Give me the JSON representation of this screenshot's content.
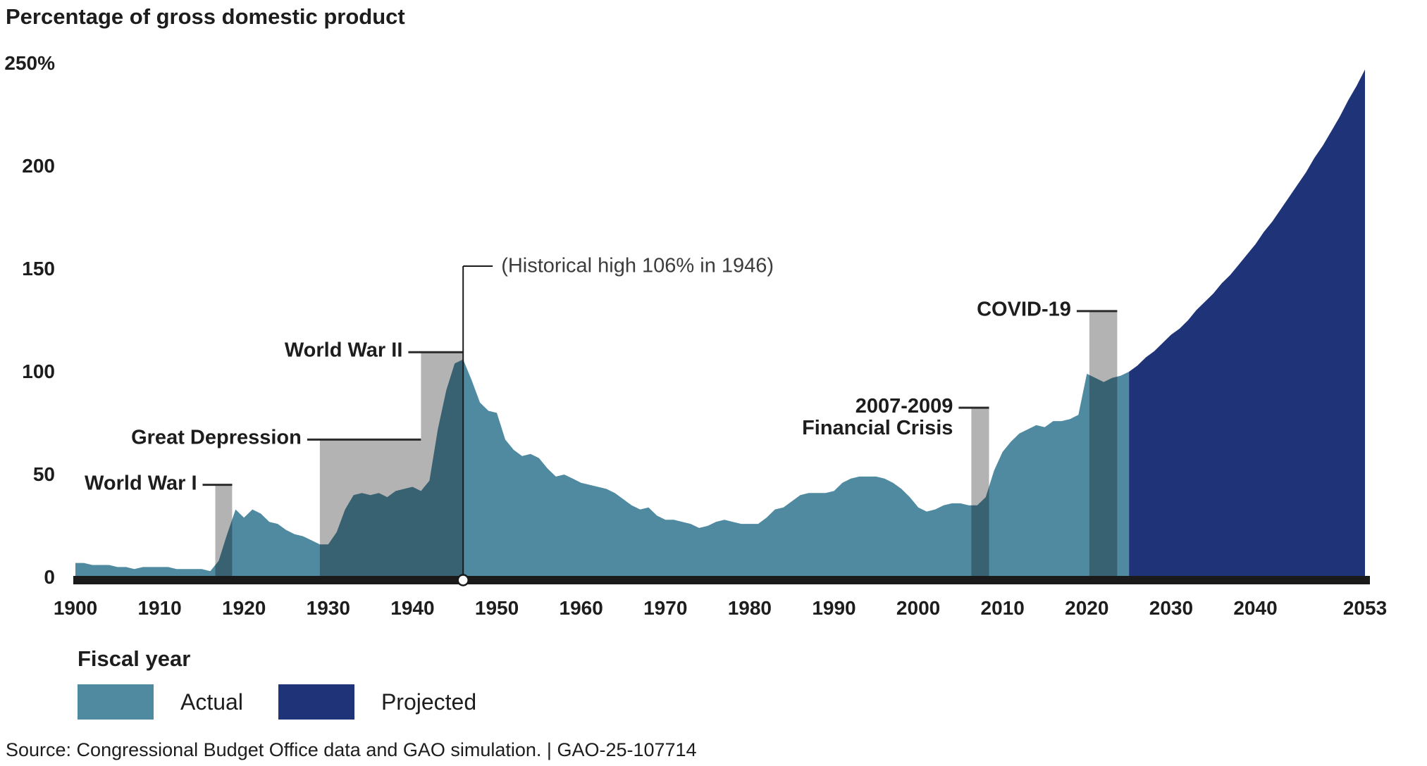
{
  "title": "Percentage of gross domestic product",
  "y_axis": {
    "ticks": [
      {
        "label": "250%",
        "value": 250
      },
      {
        "label": "200",
        "value": 200
      },
      {
        "label": "150",
        "value": 150
      },
      {
        "label": "100",
        "value": 100
      },
      {
        "label": "50",
        "value": 50
      },
      {
        "label": "0",
        "value": 0
      }
    ]
  },
  "x_axis": {
    "label": "Fiscal year",
    "ticks": [
      "1900",
      "1910",
      "1920",
      "1930",
      "1940",
      "1950",
      "1960",
      "1970",
      "1980",
      "1990",
      "2000",
      "2010",
      "2020",
      "2030",
      "2040",
      "2053"
    ]
  },
  "legend": [
    {
      "label": "Actual",
      "color": "#4F8AA1"
    },
    {
      "label": "Projected",
      "color": "#1F3378"
    }
  ],
  "source": "Source: Congressional Budget Office data and GAO simulation.  |  GAO-25-107714",
  "note": {
    "text": "(Historical high 106% in 1946)",
    "year": 1946,
    "value": 106
  },
  "chart_data": {
    "type": "area",
    "title": "Percentage of gross domestic product",
    "xlabel": "Fiscal year",
    "ylabel": "Percentage of gross domestic product",
    "xlim": [
      1900,
      2053
    ],
    "ylim": [
      0,
      250
    ],
    "grid": false,
    "legend_position": "bottom-left",
    "colors": {
      "actual": "#4F8AA1",
      "projected": "#1F3378",
      "event_band": "#B3B3B3",
      "axis_bar": "#1A1A1A",
      "connector": "#2b2b2b"
    },
    "series": [
      {
        "name": "Actual",
        "start_year": 1900,
        "values": [
          7,
          7,
          6,
          6,
          6,
          5,
          5,
          4,
          5,
          5,
          5,
          5,
          4,
          4,
          4,
          4,
          3,
          8,
          21,
          33,
          29,
          33,
          31,
          27,
          26,
          23,
          21,
          20,
          18,
          16,
          16,
          22,
          33,
          40,
          41,
          40,
          41,
          39,
          42,
          43,
          44,
          42,
          47,
          72,
          91,
          104,
          106,
          96,
          85,
          81,
          80,
          67,
          62,
          59,
          60,
          58,
          53,
          49,
          50,
          48,
          46,
          45,
          44,
          43,
          41,
          38,
          35,
          33,
          34,
          30,
          28,
          28,
          27,
          26,
          24,
          25,
          27,
          28,
          27,
          26,
          26,
          26,
          29,
          33,
          34,
          37,
          40,
          41,
          41,
          41,
          42,
          46,
          48,
          49,
          49,
          49,
          48,
          46,
          43,
          39,
          34,
          32,
          33,
          35,
          36,
          36,
          35,
          35,
          39,
          52,
          61,
          66,
          70,
          72,
          74,
          73,
          76,
          76,
          77,
          79,
          99,
          97,
          95,
          97,
          98,
          100
        ]
      },
      {
        "name": "Projected",
        "start_year": 2025,
        "values": [
          100,
          103,
          107,
          110,
          114,
          118,
          121,
          125,
          130,
          134,
          138,
          143,
          147,
          152,
          157,
          162,
          168,
          173,
          179,
          185,
          191,
          197,
          204,
          210,
          217,
          224,
          232,
          239,
          247
        ]
      }
    ],
    "events": [
      {
        "label_lines": [
          "World War I"
        ],
        "start_year": 1916.6,
        "end_year": 1918.6,
        "top_pct": 45
      },
      {
        "label_lines": [
          "Great Depression"
        ],
        "start_year": 1929,
        "end_year": 1941,
        "top_pct": 67
      },
      {
        "label_lines": [
          "World War II"
        ],
        "start_year": 1941,
        "end_year": 1946,
        "top_pct": 109.5
      },
      {
        "label_lines": [
          "2007-2009",
          "Financial Crisis"
        ],
        "start_year": 2006.3,
        "end_year": 2008.4,
        "top_pct": 82.5
      },
      {
        "label_lines": [
          "COVID-19"
        ],
        "start_year": 2020.3,
        "end_year": 2023.6,
        "top_pct": 129.5
      }
    ]
  }
}
